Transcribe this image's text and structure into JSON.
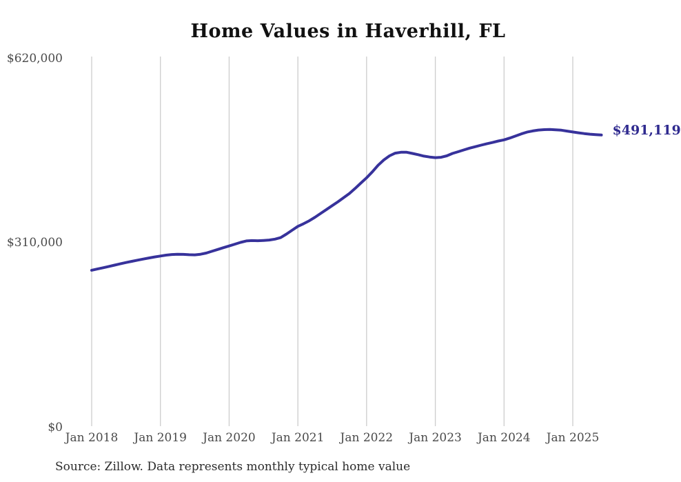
{
  "title": "Home Values in Haverhill, FL",
  "end_label": "$491,119",
  "source_note": "Source: Zillow. Data represents monthly typical home value",
  "colors": {
    "line": "#37329b",
    "end_label_text": "#2f2a8f",
    "gridline": "#cccccc",
    "axis_text": "#4a4a4a",
    "title_text": "#111111",
    "source_text": "#2b2b2b",
    "background": "#ffffff"
  },
  "chart_data": {
    "type": "line",
    "title": "Home Values in Haverhill, FL",
    "xlabel": "",
    "ylabel": "",
    "ylim": [
      0,
      620000
    ],
    "y_ticks": [
      0,
      310000,
      620000
    ],
    "y_tick_labels": [
      "$0",
      "$310,000",
      "$620,000"
    ],
    "x_tick_labels": [
      "Jan 2018",
      "Jan 2019",
      "Jan 2020",
      "Jan 2021",
      "Jan 2022",
      "Jan 2023",
      "Jan 2024",
      "Jan 2025"
    ],
    "grid": "vertical-only",
    "legend": "none",
    "start_month": "2018-01",
    "end_month": "2025-06",
    "end_value": 491119,
    "series": [
      {
        "name": "Monthly typical home value",
        "values": [
          263000,
          265100,
          267200,
          269400,
          271600,
          273800,
          276000,
          278000,
          280000,
          281900,
          283700,
          285400,
          287000,
          288500,
          289500,
          290000,
          289800,
          289200,
          289000,
          290000,
          292000,
          295000,
          298000,
          301000,
          304000,
          307000,
          310000,
          312500,
          313000,
          312800,
          313200,
          314000,
          315500,
          318000,
          324000,
          330500,
          337000,
          341500,
          346500,
          352500,
          359000,
          365500,
          372000,
          378500,
          385500,
          392500,
          401000,
          410000,
          419000,
          429000,
          440000,
          449000,
          456000,
          460500,
          462000,
          462000,
          460000,
          458000,
          455500,
          454000,
          453000,
          453500,
          456000,
          460000,
          463000,
          466000,
          469000,
          471500,
          474000,
          476500,
          478500,
          481000,
          483000,
          486000,
          489500,
          493000,
          496000,
          498000,
          499500,
          500200,
          500400,
          500000,
          499200,
          497800,
          496200,
          494800,
          493500,
          492500,
          491800,
          491119
        ]
      }
    ]
  }
}
